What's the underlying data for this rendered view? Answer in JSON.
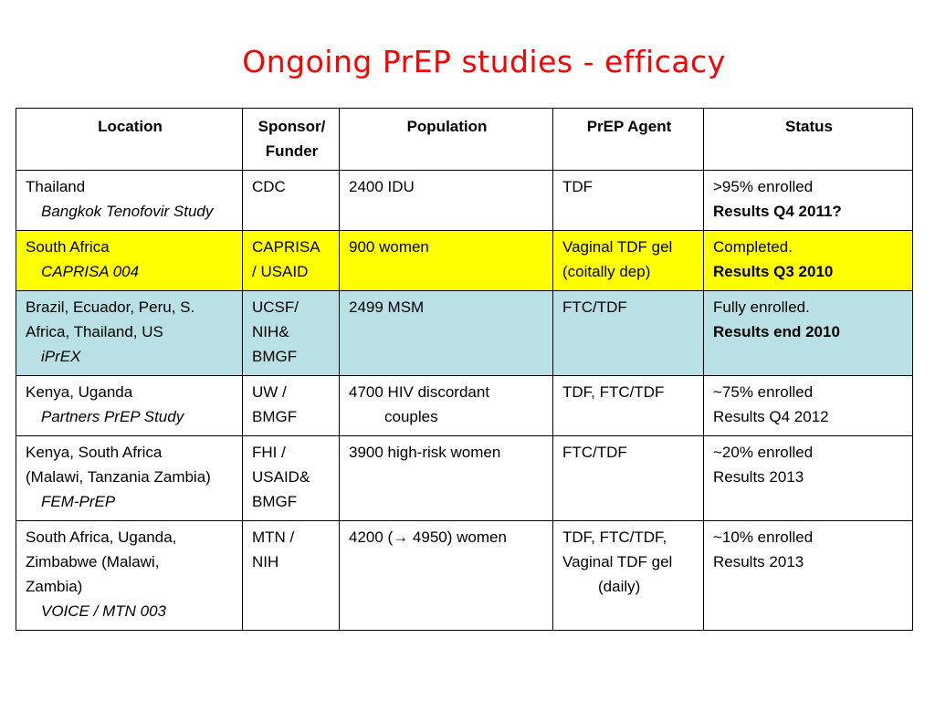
{
  "slide": {
    "title": "Ongoing PrEP studies - efficacy"
  },
  "colors": {
    "title": "#ff0000",
    "row_caprisa": "#ffff00",
    "row_iprex": "#b9e0e4"
  },
  "table": {
    "headers": {
      "location": "Location",
      "sponsor_1": "Sponsor/",
      "sponsor_2": "Funder",
      "population": "Population",
      "agent": "PrEP Agent",
      "status": "Status"
    },
    "rows": [
      {
        "location": [
          "Thailand"
        ],
        "study": "Bangkok Tenofovir Study",
        "sponsor": [
          "CDC"
        ],
        "population": [
          "2400 IDU"
        ],
        "agent": [
          "TDF"
        ],
        "status": ">95% enrolled",
        "results": "Results Q4 2011?"
      },
      {
        "location": [
          "South Africa"
        ],
        "study": "CAPRISA 004",
        "sponsor": [
          "CAPRISA",
          "/ USAID"
        ],
        "population": [
          "900 women"
        ],
        "agent": [
          "Vaginal TDF gel",
          "(coitally dep)"
        ],
        "status": "Completed.",
        "results": "Results Q3 2010"
      },
      {
        "location": [
          "Brazil, Ecuador, Peru, S.",
          "Africa, Thailand, US"
        ],
        "study": "iPrEX",
        "sponsor": [
          "UCSF/",
          "NIH&",
          "BMGF"
        ],
        "population": [
          "2499 MSM"
        ],
        "agent": [
          "FTC/TDF"
        ],
        "status": "Fully enrolled.",
        "results": "Results end 2010"
      },
      {
        "location": [
          "Kenya, Uganda"
        ],
        "study": "Partners PrEP Study",
        "sponsor": [
          "UW /",
          "BMGF"
        ],
        "population": [
          "4700 HIV discordant",
          "couples"
        ],
        "agent": [
          "TDF, FTC/TDF"
        ],
        "status": "~75% enrolled",
        "results": "Results Q4 2012"
      },
      {
        "location": [
          "Kenya, South Africa",
          "(Malawi, Tanzania Zambia)"
        ],
        "study": "FEM-PrEP",
        "sponsor": [
          "FHI /",
          "USAID&",
          "BMGF"
        ],
        "population": [
          "3900 high-risk women"
        ],
        "agent": [
          "FTC/TDF"
        ],
        "status": "~20% enrolled",
        "results": "Results 2013"
      },
      {
        "location": [
          "South Africa, Uganda,",
          "Zimbabwe (Malawi,",
          "Zambia)"
        ],
        "study": "VOICE / MTN 003",
        "sponsor": [
          "MTN /",
          "NIH"
        ],
        "population": [
          "4200 (→ 4950) women"
        ],
        "agent": [
          "TDF, FTC/TDF,",
          "Vaginal TDF gel",
          "(daily)"
        ],
        "status": "~10% enrolled",
        "results": "Results 2013"
      }
    ]
  }
}
